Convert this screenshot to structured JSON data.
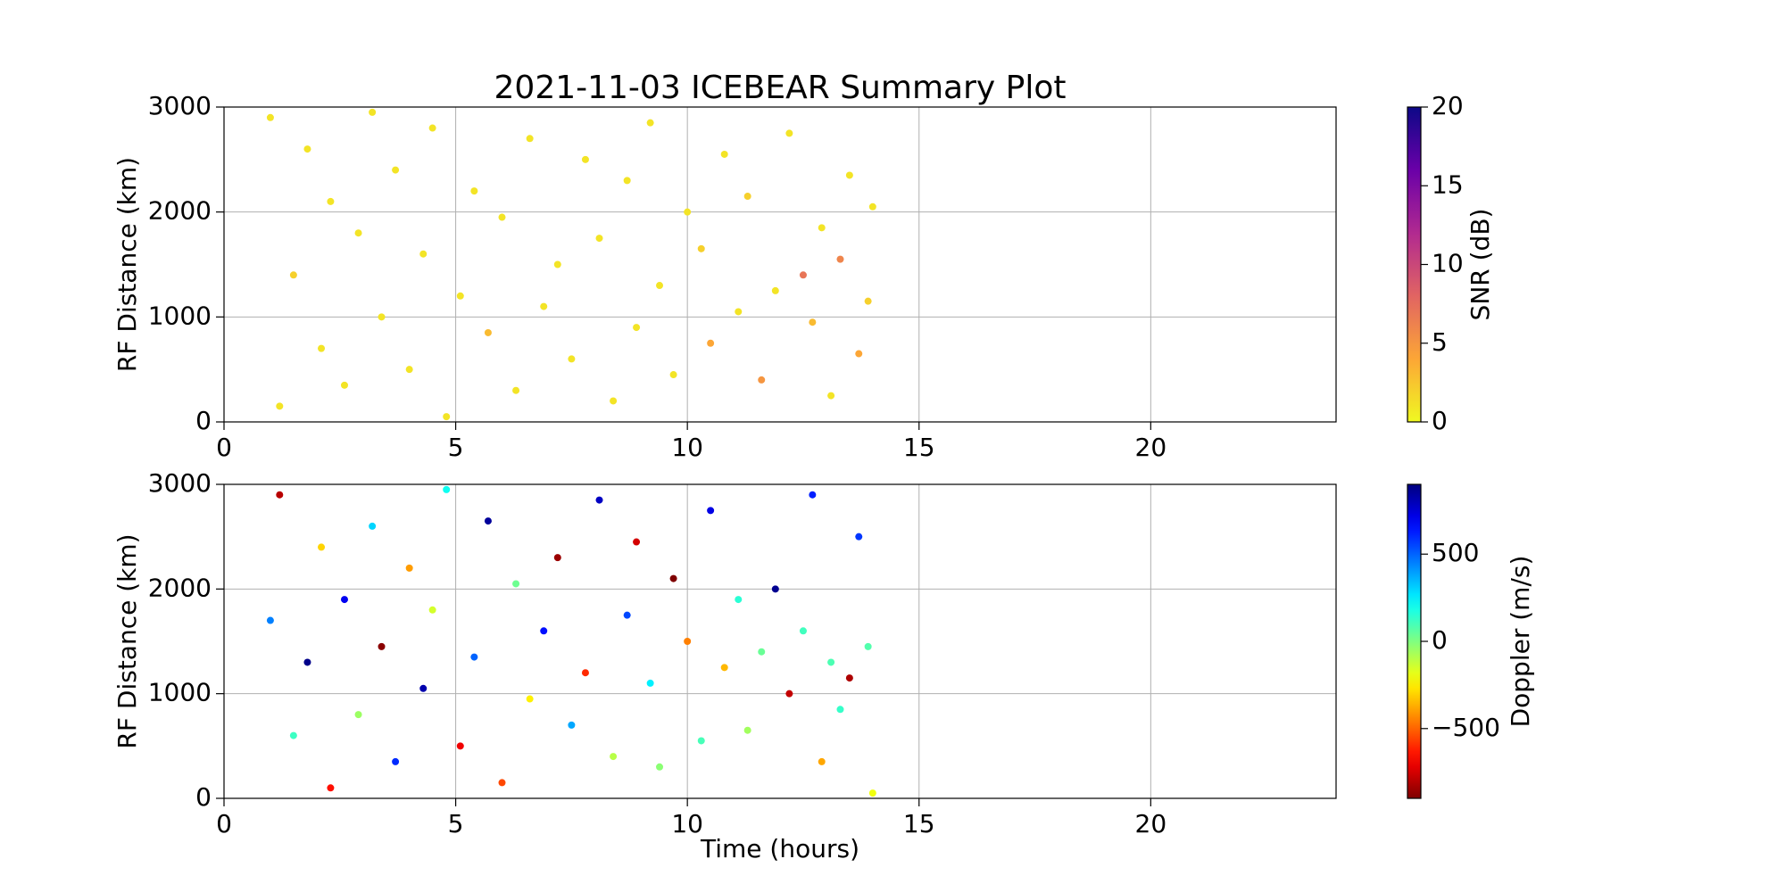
{
  "chart_data": [
    {
      "type": "scatter",
      "title": "2021-11-03 ICEBEAR Summary Plot",
      "ylabel": "RF Distance (km)",
      "xlim": [
        0,
        24
      ],
      "xticks": [
        0,
        5,
        10,
        15,
        20
      ],
      "ylim": [
        0,
        3000
      ],
      "yticks": [
        0,
        1000,
        2000,
        3000
      ],
      "grid": true,
      "colorbar": {
        "label": "SNR (dB)",
        "colormap": "plasma_r",
        "lim": [
          0,
          20
        ],
        "ticks": [
          0,
          5,
          10,
          15,
          20
        ]
      },
      "x": [
        1.0,
        1.2,
        1.5,
        1.8,
        2.1,
        2.3,
        2.6,
        2.9,
        3.2,
        3.4,
        3.7,
        4.0,
        4.3,
        4.5,
        4.8,
        5.1,
        5.4,
        5.7,
        6.0,
        6.3,
        6.6,
        6.9,
        7.2,
        7.5,
        7.8,
        8.1,
        8.4,
        8.7,
        8.9,
        9.2,
        9.4,
        9.7,
        10.0,
        10.3,
        10.5,
        10.8,
        11.1,
        11.3,
        11.6,
        11.9,
        12.2,
        12.5,
        12.7,
        12.9,
        13.1,
        13.3,
        13.5,
        13.7,
        13.9,
        14.0
      ],
      "y": [
        2900,
        150,
        1400,
        2600,
        700,
        2100,
        350,
        1800,
        2950,
        1000,
        2400,
        500,
        1600,
        2800,
        50,
        1200,
        2200,
        850,
        1950,
        300,
        2700,
        1100,
        1500,
        600,
        2500,
        1750,
        200,
        2300,
        900,
        2850,
        1300,
        450,
        2000,
        1650,
        750,
        2550,
        1050,
        2150,
        400,
        1250,
        2750,
        1400,
        950,
        1850,
        250,
        1550,
        2350,
        650,
        1150,
        2050
      ],
      "c": [
        1,
        1,
        2,
        1,
        1,
        1,
        1,
        1,
        1,
        1,
        1,
        1,
        1,
        1,
        1,
        1,
        1,
        3,
        1,
        1,
        1,
        1,
        1,
        1,
        1,
        1,
        1,
        1,
        1,
        1,
        1,
        1,
        1,
        2,
        4,
        1,
        1,
        2,
        5,
        1,
        1,
        7,
        3,
        1,
        1,
        6,
        1,
        4,
        2,
        1
      ]
    },
    {
      "type": "scatter",
      "xlabel": "Time (hours)",
      "ylabel": "RF Distance (km)",
      "xlim": [
        0,
        24
      ],
      "xticks": [
        0,
        5,
        10,
        15,
        20
      ],
      "ylim": [
        0,
        3000
      ],
      "yticks": [
        0,
        1000,
        2000,
        3000
      ],
      "grid": true,
      "colorbar": {
        "label": "Doppler (m/s)",
        "colormap": "jet_r",
        "lim": [
          -900,
          900
        ],
        "ticks": [
          {
            "value": -500,
            "label": "−500"
          },
          0,
          500
        ]
      },
      "x": [
        1.0,
        1.2,
        1.5,
        1.8,
        2.1,
        2.3,
        2.6,
        2.9,
        3.2,
        3.4,
        3.7,
        4.0,
        4.3,
        4.5,
        4.8,
        5.1,
        5.4,
        5.7,
        6.0,
        6.3,
        6.6,
        6.9,
        7.2,
        7.5,
        7.8,
        8.1,
        8.4,
        8.7,
        8.9,
        9.2,
        9.4,
        9.7,
        10.0,
        10.3,
        10.5,
        10.8,
        11.1,
        11.3,
        11.6,
        11.9,
        12.2,
        12.5,
        12.7,
        12.9,
        13.1,
        13.3,
        13.5,
        13.7,
        13.9,
        14.0
      ],
      "y": [
        1700,
        2900,
        600,
        1300,
        2400,
        100,
        1900,
        800,
        2600,
        1450,
        350,
        2200,
        1050,
        1800,
        2950,
        500,
        1350,
        2650,
        150,
        2050,
        950,
        1600,
        2300,
        700,
        1200,
        2850,
        400,
        1750,
        2450,
        1100,
        300,
        2100,
        1500,
        550,
        2750,
        1250,
        1900,
        650,
        1400,
        2000,
        1000,
        1600,
        2900,
        350,
        1300,
        850,
        1150,
        2500,
        1450,
        50
      ],
      "c": [
        450,
        -800,
        120,
        880,
        -300,
        -650,
        700,
        -50,
        300,
        -880,
        600,
        -400,
        820,
        -150,
        200,
        -700,
        500,
        850,
        -550,
        30,
        -250,
        650,
        -850,
        380,
        -600,
        780,
        -100,
        550,
        -750,
        250,
        -20,
        -900,
        -450,
        100,
        720,
        -350,
        150,
        -60,
        40,
        870,
        -780,
        110,
        620,
        -380,
        90,
        130,
        -820,
        580,
        80,
        -200
      ]
    }
  ]
}
